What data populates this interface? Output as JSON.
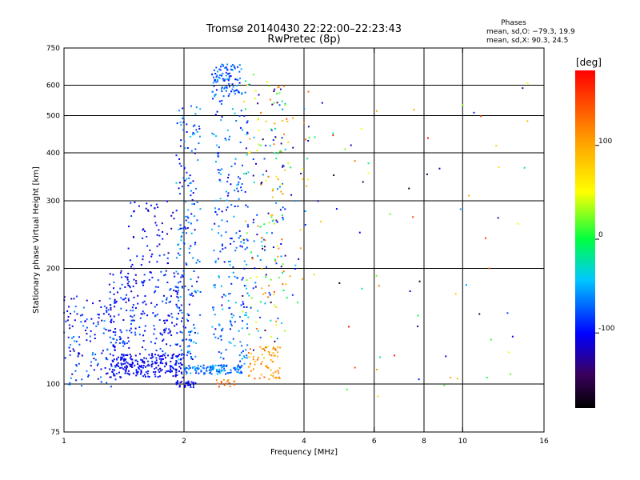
{
  "chart_data": {
    "type": "scatter",
    "title": "Tromsø 20140430 22:22:00–22:23:43",
    "subtitle": "RwPretec (8p)",
    "stats": {
      "header": "Phases",
      "line_o": "mean, sd,O: −79.3, 19.9",
      "line_x": "mean, sd,X:  90.3, 24.5"
    },
    "xlabel": "Frequency [MHz]",
    "ylabel": "Stationary phase Virtual Height [km]",
    "x_scale": "log",
    "y_scale": "log",
    "xlim": [
      1,
      16
    ],
    "ylim": [
      75,
      750
    ],
    "x_ticks": [
      1,
      2,
      4,
      6,
      8,
      10,
      16
    ],
    "y_ticks": [
      75,
      100,
      200,
      300,
      400,
      500,
      600,
      750
    ],
    "x_grid": [
      2,
      4,
      6,
      8,
      10
    ],
    "y_grid": [
      100,
      200,
      300,
      400,
      500,
      600
    ],
    "colorbar": {
      "label": "[deg]",
      "range": [
        -180,
        180
      ],
      "ticks": [
        100,
        0,
        -100
      ],
      "colormap": "rainbow"
    },
    "point_clusters": [
      {
        "xlim": [
          1.0,
          1.35
        ],
        "ylim": [
          98,
          170
        ],
        "phase_range": [
          -130,
          -50
        ],
        "count": 140
      },
      {
        "xlim": [
          1.3,
          2.0
        ],
        "ylim": [
          104,
          120
        ],
        "phase_range": [
          -120,
          -85
        ],
        "count": 240
      },
      {
        "xlim": [
          1.3,
          2.0
        ],
        "ylim": [
          120,
          200
        ],
        "phase_range": [
          -120,
          -70
        ],
        "count": 220
      },
      {
        "xlim": [
          1.45,
          1.9
        ],
        "ylim": [
          200,
          300
        ],
        "phase_range": [
          -130,
          -80
        ],
        "count": 60
      },
      {
        "xlim": [
          1.9,
          2.15
        ],
        "ylim": [
          98,
          102
        ],
        "phase_range": [
          -110,
          -90
        ],
        "count": 30
      },
      {
        "xlim": [
          1.9,
          2.2
        ],
        "ylim": [
          110,
          540
        ],
        "phase_range": [
          -120,
          -40
        ],
        "count": 200
      },
      {
        "xlim": [
          2.0,
          2.8
        ],
        "ylim": [
          106,
          112
        ],
        "phase_range": [
          -90,
          -40
        ],
        "count": 110
      },
      {
        "xlim": [
          2.35,
          2.8
        ],
        "ylim": [
          560,
          680
        ],
        "phase_range": [
          -100,
          -50
        ],
        "count": 100
      },
      {
        "xlim": [
          2.35,
          2.9
        ],
        "ylim": [
          110,
          560
        ],
        "phase_range": [
          -110,
          -40
        ],
        "count": 220
      },
      {
        "xlim": [
          2.8,
          3.6
        ],
        "ylim": [
          120,
          650
        ],
        "phase_range": [
          -160,
          130
        ],
        "count": 190
      },
      {
        "xlim": [
          2.9,
          3.5
        ],
        "ylim": [
          102,
          125
        ],
        "phase_range": [
          80,
          140
        ],
        "count": 70
      },
      {
        "xlim": [
          2.4,
          2.7
        ],
        "ylim": [
          97,
          103
        ],
        "phase_range": [
          100,
          150
        ],
        "count": 15
      },
      {
        "xlim": [
          3.3,
          4.2
        ],
        "ylim": [
          160,
          600
        ],
        "phase_range": [
          -150,
          150
        ],
        "count": 60
      },
      {
        "xlim": [
          4.0,
          15.0
        ],
        "ylim": [
          90,
          640
        ],
        "phase_range": [
          -180,
          180
        ],
        "count": 70
      }
    ]
  }
}
